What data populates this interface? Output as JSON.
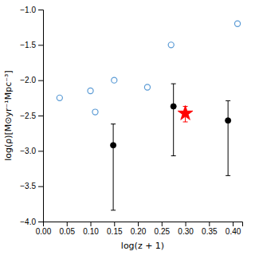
{
  "chart_data": {
    "type": "scatter",
    "xlabel": "log(z + 1)",
    "ylabel": "log(ρ)[M⊙yr⁻¹Mpc⁻³]",
    "series": [
      {
        "color": "#5B9BD5",
        "marker": "circle-open",
        "x": [
          0.035,
          0.1,
          0.11,
          0.15,
          0.22,
          0.27,
          0.41
        ],
        "values": [
          -2.25,
          -2.15,
          -2.45,
          -2.0,
          -2.1,
          -1.5,
          -1.2
        ]
      },
      {
        "color": "#000000",
        "marker": "circle",
        "x": [
          0.148,
          0.275,
          0.39
        ],
        "values": [
          -2.92,
          -2.37,
          -2.57
        ],
        "error_lo": [
          0.92,
          0.7,
          0.78
        ],
        "error_hi": [
          0.3,
          0.32,
          0.28
        ]
      },
      {
        "color": "#FF0000",
        "marker": "star",
        "x": [
          0.3
        ],
        "values": [
          -2.47
        ],
        "error_lo": [
          0.12
        ],
        "error_hi": [
          0.1
        ]
      }
    ],
    "xlim": [
      0,
      0.42
    ],
    "ylim": [
      -4.0,
      -1.0
    ],
    "xticks": [
      {
        "value": 0,
        "label": "0.00"
      },
      0.05,
      {
        "value": 0.1,
        "label": "0.10"
      },
      0.15,
      {
        "value": 0.2,
        "label": "0.20"
      },
      0.25,
      {
        "value": 0.3,
        "label": "0.30"
      },
      0.35,
      {
        "value": 0.4,
        "label": "0.40"
      }
    ],
    "yticks": [
      {
        "value": -4.0,
        "label": "−4.0"
      },
      {
        "value": -3.5,
        "label": "−3.5"
      },
      {
        "value": -3.0,
        "label": "−3.0"
      },
      {
        "value": -2.5,
        "label": "−2.5"
      },
      {
        "value": -2.0,
        "label": "−2.0"
      },
      {
        "value": -1.5,
        "label": "−1.5"
      },
      {
        "value": -1.0,
        "label": "−1.0"
      }
    ],
    "grid": false
  }
}
